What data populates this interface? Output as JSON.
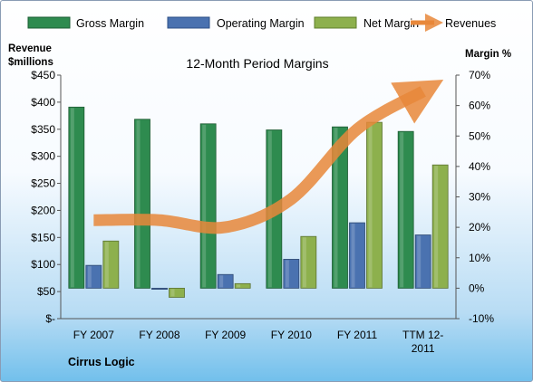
{
  "chart_data": {
    "type": "bar",
    "title": "12-Month Period Margins",
    "categories": [
      "FY 2007",
      "FY 2008",
      "FY 2009",
      "FY 2010",
      "FY 2011",
      "TTM 12-2011"
    ],
    "category_lines": [
      [
        "FY 2007"
      ],
      [
        "FY 2008"
      ],
      [
        "FY 2009"
      ],
      [
        "FY 2010"
      ],
      [
        "FY 2011"
      ],
      [
        "TTM 12-",
        "2011"
      ]
    ],
    "left_axis": {
      "label_lines": [
        "Revenue",
        "$millions"
      ],
      "range": [
        0,
        450
      ],
      "ticks": [
        0,
        50,
        100,
        150,
        200,
        250,
        300,
        350,
        400,
        450
      ],
      "tick_labels": [
        "$-",
        "$50",
        "$100",
        "$150",
        "$200",
        "$250",
        "$300",
        "$350",
        "$400",
        "$450"
      ]
    },
    "right_axis": {
      "label": "Margin %",
      "range": [
        -10,
        70
      ],
      "ticks": [
        -10,
        0,
        10,
        20,
        30,
        40,
        50,
        60,
        70
      ],
      "tick_labels": [
        "-10%",
        "0%",
        "10%",
        "20%",
        "30%",
        "40%",
        "50%",
        "60%",
        "70%"
      ]
    },
    "series": [
      {
        "name": "Gross Margin",
        "axis": "right",
        "kind": "bar",
        "color": "#2e8b4f",
        "values": [
          59.5,
          55.5,
          54,
          52,
          53,
          51.5
        ]
      },
      {
        "name": "Operating Margin",
        "axis": "right",
        "kind": "bar",
        "color": "#4a72b0",
        "values": [
          7.5,
          -0.2,
          4.5,
          9.5,
          21.5,
          17.5
        ]
      },
      {
        "name": "Net Margin",
        "axis": "right",
        "kind": "bar",
        "color": "#8db04d",
        "values": [
          15.5,
          -3,
          1.5,
          17,
          54.5,
          40.5
        ]
      },
      {
        "name": "Revenues",
        "axis": "left",
        "kind": "line",
        "color": "#e8873a",
        "values": [
          182,
          182,
          169,
          221,
          350,
          420
        ]
      }
    ],
    "legend_position": "top",
    "grid": false,
    "company": "Cirrus Logic"
  }
}
